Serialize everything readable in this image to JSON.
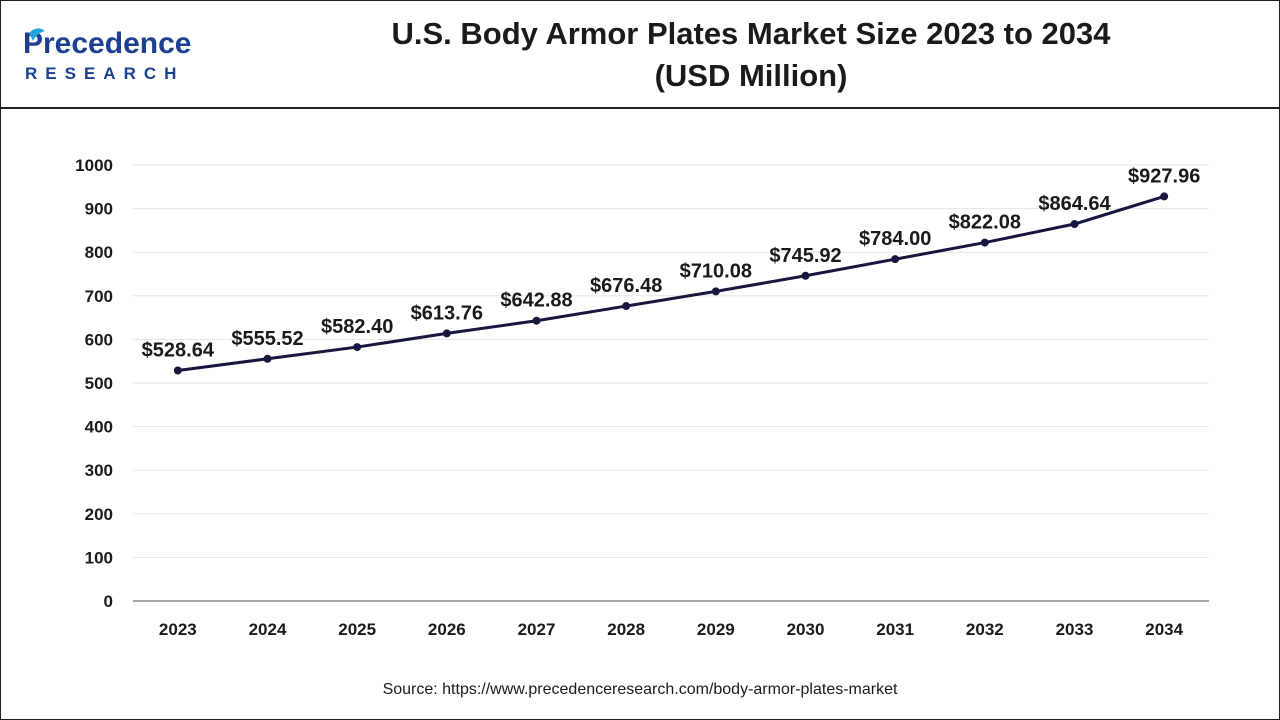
{
  "header": {
    "title_line1": "U.S. Body Armor Plates Market Size 2023 to 2034",
    "title_line2": "(USD Million)"
  },
  "logo": {
    "text_main": "Precedence",
    "text_sub": "RESEARCH",
    "colors": {
      "main": "#1c3f8f",
      "accent": "#26a3dd"
    }
  },
  "source": "Source: https://www.precedenceresearch.com/body-armor-plates-market",
  "colors": {
    "line": "#16163f",
    "axis": "#888888",
    "grid": "#e6e6e6",
    "text": "#1a1a1a"
  },
  "chart_data": {
    "type": "line",
    "title": "U.S. Body Armor Plates Market Size 2023 to 2034 (USD Million)",
    "xlabel": "",
    "ylabel": "",
    "categories": [
      "2023",
      "2024",
      "2025",
      "2026",
      "2027",
      "2028",
      "2029",
      "2030",
      "2031",
      "2032",
      "2033",
      "2034"
    ],
    "values": [
      528.64,
      555.52,
      582.4,
      613.76,
      642.88,
      676.48,
      710.08,
      745.92,
      784.0,
      822.08,
      864.64,
      927.96
    ],
    "data_labels": [
      "$528.64",
      "$555.52",
      "$582.40",
      "$613.76",
      "$642.88",
      "$676.48",
      "$710.08",
      "$745.92",
      "$784.00",
      "$822.08",
      "$864.64",
      "$927.96"
    ],
    "ylim": [
      0,
      1000
    ],
    "yticks": [
      0,
      100,
      200,
      300,
      400,
      500,
      600,
      700,
      800,
      900,
      1000
    ],
    "grid": true,
    "legend": "none"
  }
}
